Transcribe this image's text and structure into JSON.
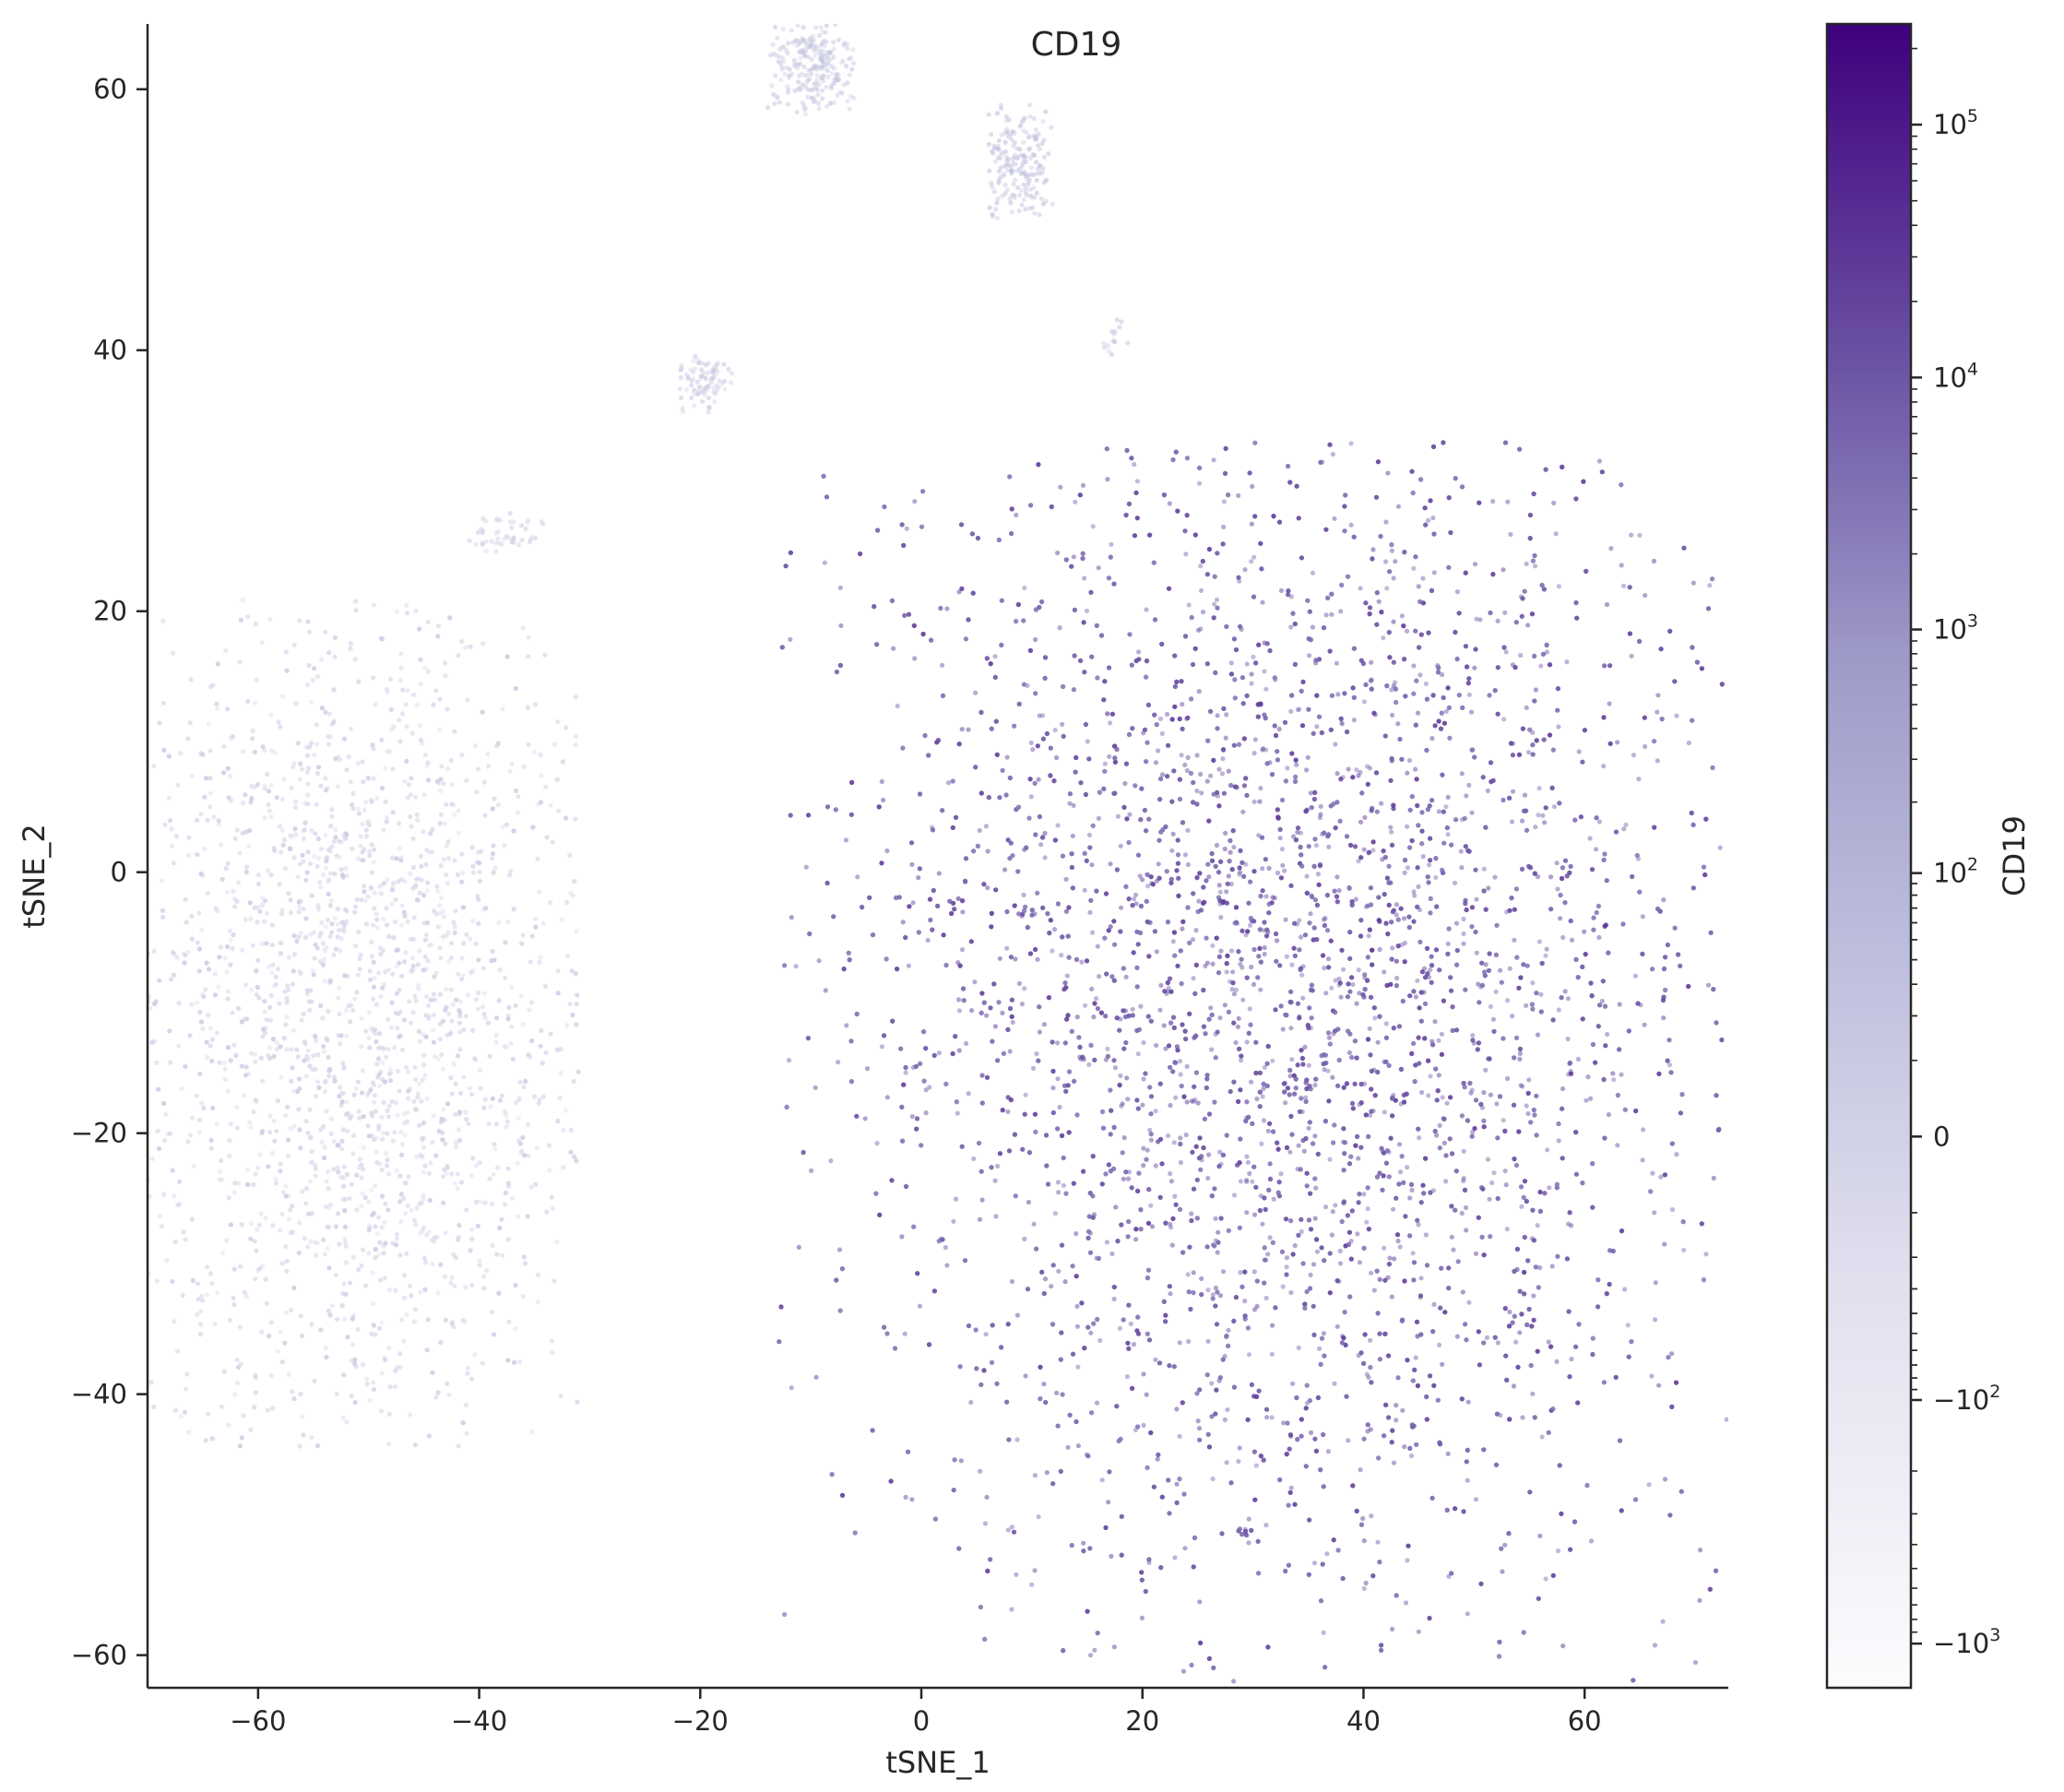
{
  "chart_data": {
    "type": "scatter",
    "title": "CD19",
    "xlabel": "tSNE_1",
    "ylabel": "tSNE_2",
    "xlim": [
      -70,
      73
    ],
    "ylim": [
      -62.5,
      65
    ],
    "xticks": [
      -60,
      -40,
      -20,
      0,
      20,
      40,
      60
    ],
    "xtick_labels": [
      "−60",
      "−40",
      "−20",
      "0",
      "20",
      "40",
      "60"
    ],
    "yticks": [
      -60,
      -40,
      -20,
      0,
      20,
      40,
      60
    ],
    "ytick_labels": [
      "−60",
      "−40",
      "−20",
      "0",
      "20",
      "40",
      "60"
    ],
    "grid": false,
    "colorbar": {
      "label": "CD19",
      "scale": "symlog",
      "colormap": "Purples",
      "range": [
        -1500,
        250000
      ],
      "ticks": [
        {
          "value": 100000,
          "base": "10",
          "exp": "5"
        },
        {
          "value": 10000,
          "base": "10",
          "exp": "4"
        },
        {
          "value": 1000,
          "base": "10",
          "exp": "3"
        },
        {
          "value": 100,
          "base": "10",
          "exp": "2"
        },
        {
          "value": 0,
          "base": "0",
          "exp": ""
        },
        {
          "value": -100,
          "base": "−10",
          "exp": "2"
        },
        {
          "value": -1000,
          "base": "−10",
          "exp": "3"
        }
      ]
    },
    "clusters": [
      {
        "cx": 33,
        "cy": -10,
        "sx": 20,
        "sy": 23,
        "xmin": -13,
        "xmax": 73,
        "ymin": -62,
        "ymax": 33,
        "count": 7000,
        "level": 0.78
      },
      {
        "cx": -50,
        "cy": -12,
        "sx": 11,
        "sy": 17,
        "xmin": -70,
        "xmax": -31,
        "ymin": -44,
        "ymax": 21,
        "count": 2600,
        "level": 0.28
      },
      {
        "cx": -10,
        "cy": 62,
        "sx": 2.2,
        "sy": 2,
        "xmin": -14,
        "xmax": -6,
        "ymin": 58,
        "ymax": 65,
        "count": 240,
        "level": 0.32
      },
      {
        "cx": 9,
        "cy": 54,
        "sx": 1.8,
        "sy": 2.4,
        "xmin": 6,
        "xmax": 12,
        "ymin": 50,
        "ymax": 59,
        "count": 180,
        "level": 0.36
      },
      {
        "cx": -19.5,
        "cy": 37.5,
        "sx": 1.4,
        "sy": 1.2,
        "xmin": -22,
        "xmax": -17,
        "ymin": 35,
        "ymax": 40,
        "count": 90,
        "level": 0.3
      },
      {
        "cx": -38,
        "cy": 26,
        "sx": 2.5,
        "sy": 0.8,
        "xmin": -41,
        "xmax": -33,
        "ymin": 24.5,
        "ymax": 27.5,
        "count": 50,
        "level": 0.28
      },
      {
        "cx": 17.5,
        "cy": 41,
        "sx": 0.6,
        "sy": 1,
        "xmin": 16,
        "xmax": 19,
        "ymin": 39,
        "ymax": 43,
        "count": 14,
        "level": 0.35
      }
    ]
  }
}
